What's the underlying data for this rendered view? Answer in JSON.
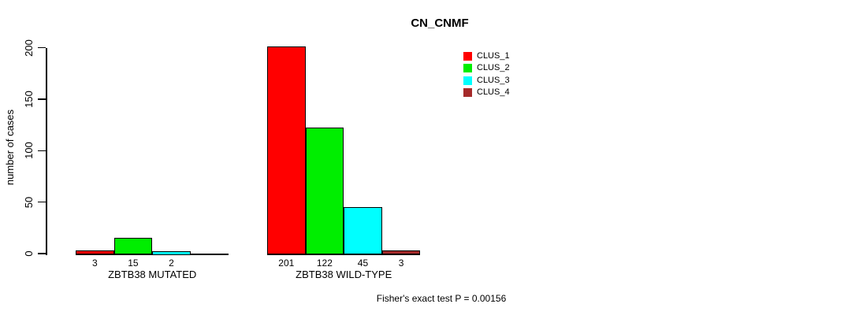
{
  "chart_data": {
    "type": "bar",
    "title": "CN_CNMF",
    "ylabel": "number of cases",
    "xlabel": "",
    "ylim": [
      0,
      200
    ],
    "yticks": [
      0,
      50,
      100,
      150,
      200
    ],
    "grid": false,
    "legend_position": "top-right",
    "categories": [
      "ZBTB38 MUTATED",
      "ZBTB38 WILD-TYPE"
    ],
    "series": [
      {
        "name": "CLUS_1",
        "color": "#ff0000",
        "values": [
          3,
          201
        ]
      },
      {
        "name": "CLUS_2",
        "color": "#00ee00",
        "values": [
          15,
          122
        ]
      },
      {
        "name": "CLUS_3",
        "color": "#00ffff",
        "values": [
          2,
          45
        ]
      },
      {
        "name": "CLUS_4",
        "color": "#a52a2a",
        "values": [
          0,
          3
        ]
      }
    ],
    "bar_value_labels": [
      [
        "3",
        "15",
        "2",
        ""
      ],
      [
        "201",
        "122",
        "45",
        "3"
      ]
    ],
    "annotation": "Fisher's exact test P = 0.00156"
  }
}
